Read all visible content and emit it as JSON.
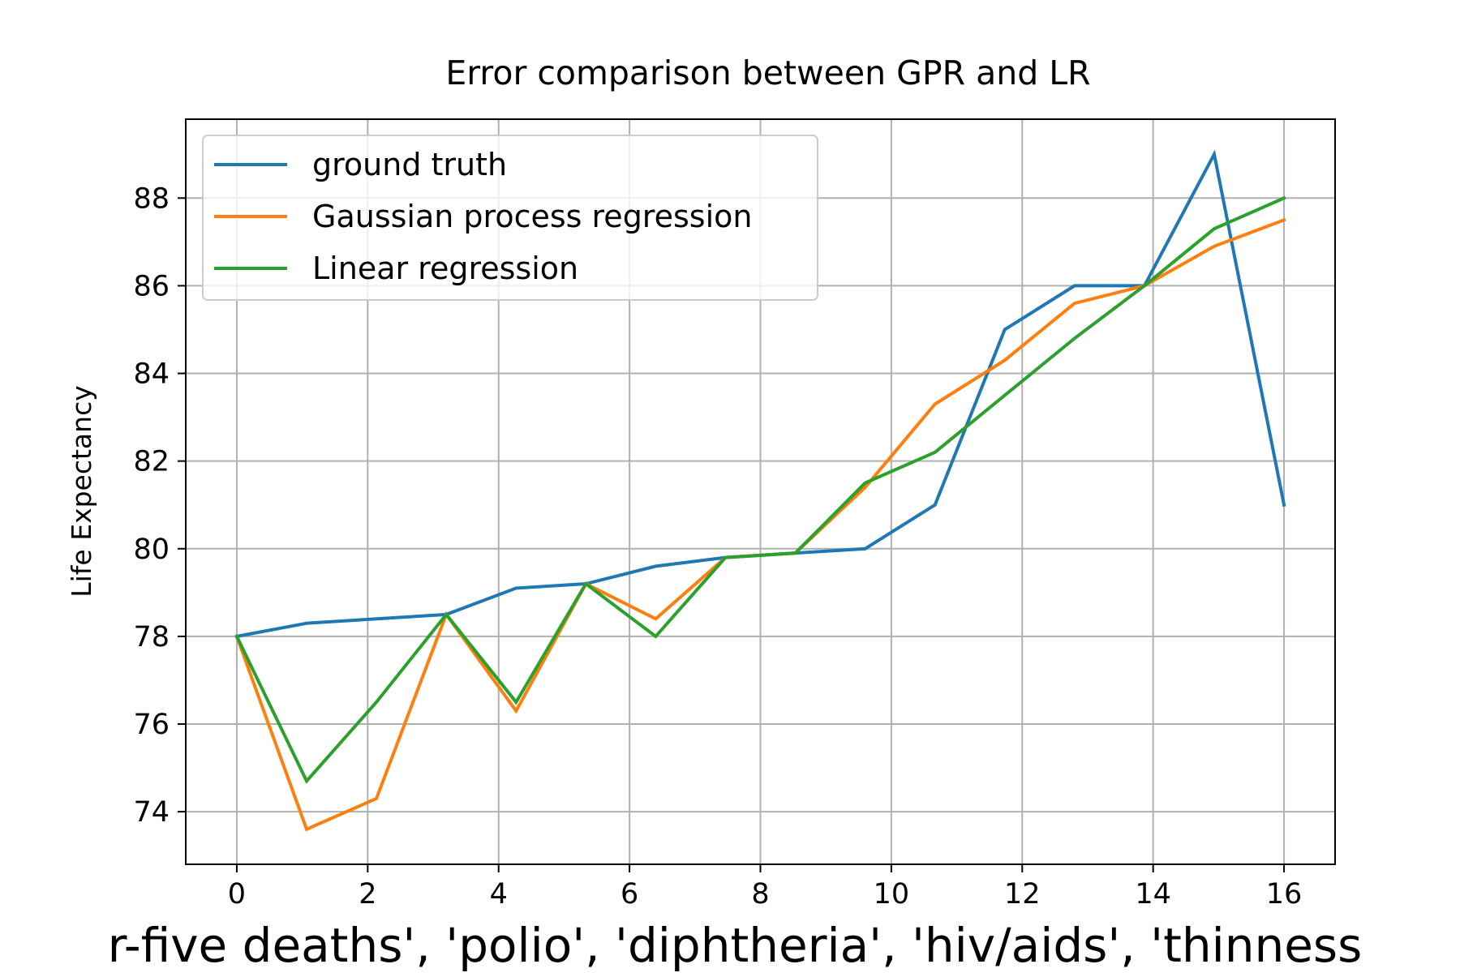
{
  "chart_data": {
    "type": "line",
    "title": "Error comparison between GPR and LR",
    "xlabel": "r-five  deaths', 'polio', 'diphtheria', 'hiv/aids', 'thinness",
    "ylabel": "Life Expectancy",
    "xlim": [
      -0.78,
      16.78
    ],
    "ylim": [
      72.8,
      89.8
    ],
    "x_ticks": [
      0,
      2,
      4,
      6,
      8,
      10,
      12,
      14,
      16
    ],
    "y_ticks": [
      74,
      76,
      78,
      80,
      82,
      84,
      86,
      88
    ],
    "grid": true,
    "legend_position": "upper-left",
    "x": [
      0,
      1.067,
      2.133,
      3.2,
      4.267,
      5.333,
      6.4,
      7.467,
      8.533,
      9.6,
      10.667,
      11.733,
      12.8,
      13.867,
      14.933,
      16
    ],
    "series": [
      {
        "name": "ground truth",
        "color": "#1f77b4",
        "values": [
          78.0,
          78.3,
          78.4,
          78.5,
          79.1,
          79.2,
          79.6,
          79.8,
          79.9,
          80.0,
          81.0,
          85.0,
          86.0,
          86.0,
          89.0,
          81.0
        ]
      },
      {
        "name": "Gaussian process regression",
        "color": "#ff7f0e",
        "values": [
          78.0,
          73.6,
          74.3,
          78.5,
          76.3,
          79.2,
          78.4,
          79.8,
          79.9,
          81.4,
          83.3,
          84.3,
          85.6,
          86.0,
          86.9,
          87.5
        ]
      },
      {
        "name": "Linear regression",
        "color": "#2ca02c",
        "values": [
          78.0,
          74.7,
          76.5,
          78.5,
          76.5,
          79.2,
          78.0,
          79.8,
          79.9,
          81.5,
          82.2,
          83.5,
          84.8,
          86.0,
          87.3,
          88.0
        ]
      }
    ]
  }
}
